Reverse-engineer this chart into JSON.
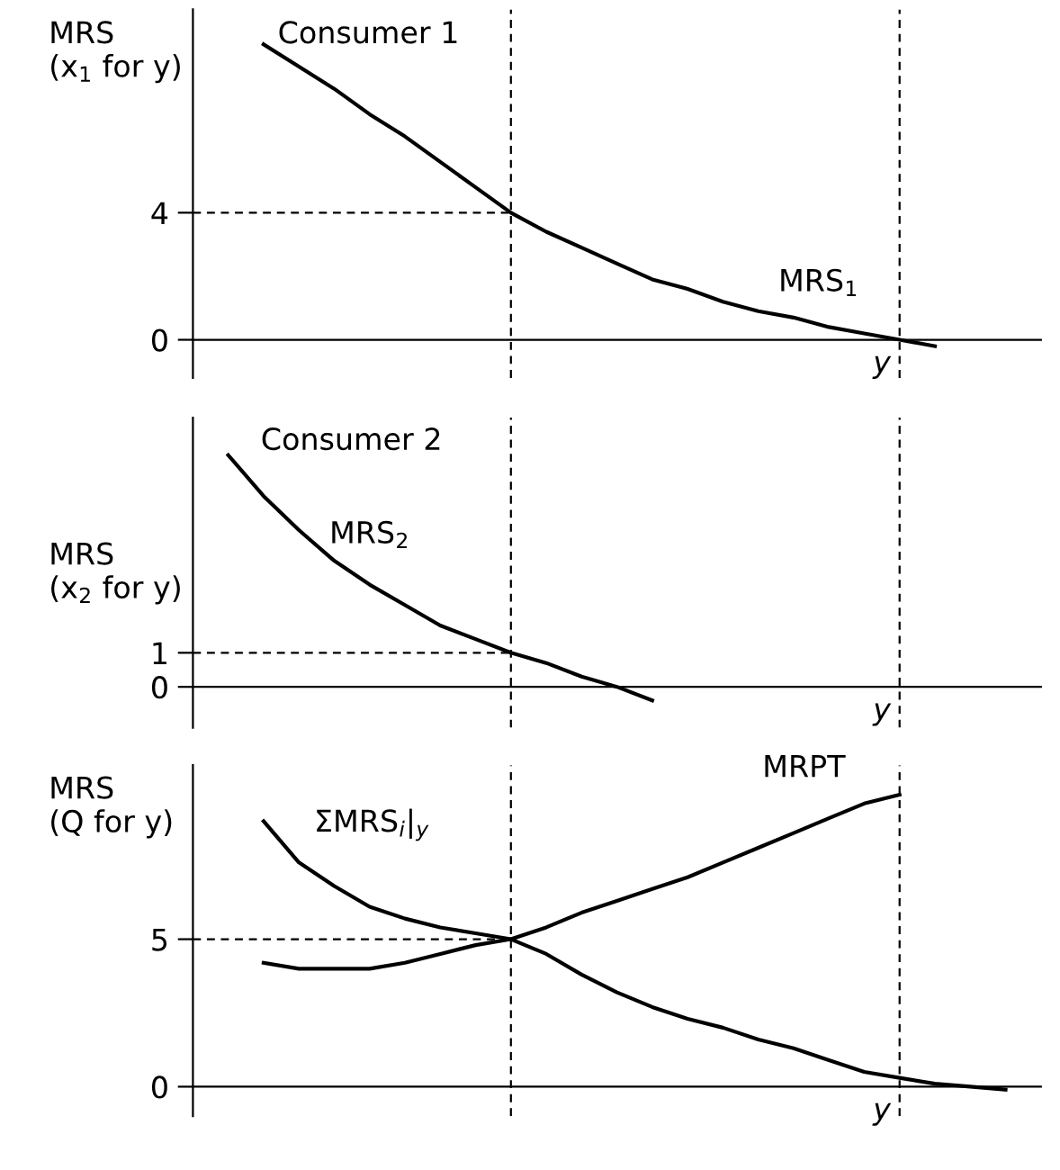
{
  "chart_data": [
    {
      "type": "line",
      "title": "Consumer 1",
      "ylabel": "MRS\n(x$_{1}$ for y)",
      "xlabel": "y",
      "categories": [
        null,
        null,
        null,
        null,
        null,
        null,
        null,
        null,
        null,
        null,
        null,
        null,
        null,
        null,
        null,
        null,
        null,
        null,
        null,
        null,
        null,
        null,
        null,
        null,
        null
      ],
      "series": [
        {
          "name": "MRS$_{1}$",
          "color": "#000000",
          "values": [
            null,
            null,
            9.3,
            8.6,
            7.9,
            7.1,
            6.4,
            5.6,
            4.8,
            4.0,
            3.4,
            2.9,
            2.4,
            1.9,
            1.6,
            1.2,
            0.9,
            0.7,
            0.4,
            0.2,
            0,
            -0.2,
            null,
            null,
            null
          ]
        },
        {
          "color": "#000000",
          "line_style": "dashed",
          "values": [
            4,
            4,
            4,
            4,
            4,
            4,
            4,
            4,
            4,
            4,
            null,
            null,
            null,
            null,
            null,
            null,
            null,
            null,
            null,
            null,
            null,
            null,
            null,
            null,
            null
          ]
        }
      ],
      "ylim": [
        -1.2,
        10.4
      ],
      "yticks": [
        0,
        4
      ],
      "grid": false,
      "legend": false
    },
    {
      "type": "line",
      "title": "Consumer 2",
      "ylabel": "MRS\n(x$_{2}$ for y)",
      "xlabel": "y",
      "categories": [
        null,
        null,
        null,
        null,
        null,
        null,
        null,
        null,
        null,
        null,
        null,
        null,
        null,
        null,
        null,
        null,
        null,
        null,
        null,
        null,
        null,
        null,
        null,
        null,
        null
      ],
      "series": [
        {
          "name": "MRS$_{2}$",
          "color": "#000000",
          "values": [
            null,
            6.8,
            5.6,
            4.6,
            3.7,
            3.0,
            2.4,
            1.8,
            1.4,
            1.0,
            0.7,
            0.3,
            0,
            -0.4,
            null,
            null,
            null,
            null,
            null,
            null,
            null,
            null,
            null,
            null,
            null
          ]
        },
        {
          "color": "#000000",
          "line_style": "dashed",
          "values": [
            1,
            1,
            1,
            1,
            1,
            1,
            1,
            1,
            1,
            1,
            null,
            null,
            null,
            null,
            null,
            null,
            null,
            null,
            null,
            null,
            null,
            null,
            null,
            null,
            null
          ]
        }
      ],
      "ylim": [
        -1.2,
        7.9
      ],
      "yticks": [
        0,
        1
      ],
      "grid": false,
      "legend": false
    },
    {
      "type": "line",
      "ylabel": "MRS\n(Q for y)",
      "xlabel": "y",
      "categories": [
        null,
        null,
        null,
        null,
        null,
        null,
        null,
        null,
        null,
        null,
        null,
        null,
        null,
        null,
        null,
        null,
        null,
        null,
        null,
        null,
        null,
        null,
        null,
        null,
        null
      ],
      "series": [
        {
          "name": "ΣMRS$_{i}$|$_{y}$",
          "color": "#000000",
          "values": [
            null,
            null,
            9.0,
            7.6,
            6.8,
            6.1,
            5.7,
            5.4,
            5.2,
            5.0,
            4.5,
            3.8,
            3.2,
            2.7,
            2.3,
            2.0,
            1.6,
            1.3,
            0.9,
            0.5,
            0.3,
            0.1,
            0,
            -0.1,
            null
          ]
        },
        {
          "name": "MRPT",
          "color": "#000000",
          "values": [
            null,
            null,
            4.2,
            4.0,
            4.0,
            4.0,
            4.2,
            4.5,
            4.8,
            5.0,
            5.4,
            5.9,
            6.3,
            6.7,
            7.1,
            7.6,
            8.1,
            8.6,
            9.1,
            9.6,
            9.9,
            null,
            null,
            null,
            null
          ]
        },
        {
          "color": "#000000",
          "line_style": "dashed",
          "values": [
            5,
            5,
            5,
            5,
            5,
            5,
            5,
            5,
            5,
            5,
            null,
            null,
            null,
            null,
            null,
            null,
            null,
            null,
            null,
            null,
            null,
            null,
            null,
            null,
            null
          ]
        }
      ],
      "ylim": [
        -1.0,
        10.9
      ],
      "yticks": [
        0,
        5
      ],
      "grid": false,
      "legend": false
    }
  ]
}
